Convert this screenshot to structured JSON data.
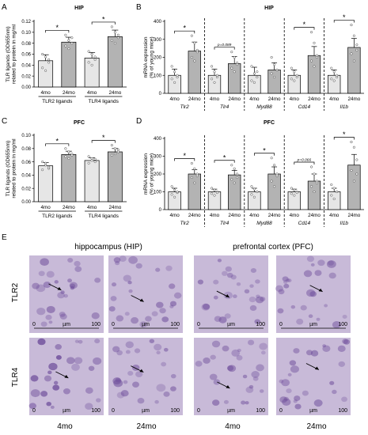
{
  "panel_letters": [
    "A",
    "B",
    "C",
    "D",
    "E"
  ],
  "colors": {
    "bar_4mo": "#e6e6e6",
    "bar_24mo": "#b3b3b3",
    "axis": "#000000",
    "micro_bg": "#c8bad8",
    "micro_stain": "#6d4c9a"
  },
  "chart_data": [
    {
      "panel": "A",
      "type": "bar",
      "title": "HIP",
      "ylabel": "TLR ligands (OD655nm)\nrelated to protein in mg/ml",
      "ylim": [
        0,
        0.12
      ],
      "yticks": [
        "0.00",
        "0.02",
        "0.04",
        "0.06",
        "0.08",
        "0.10",
        "0.12"
      ],
      "categories": [
        "4mo",
        "24mo",
        "4mo",
        "24mo"
      ],
      "groups": [
        "TLR2 ligands",
        "TLR4 ligands"
      ],
      "values": [
        0.048,
        0.082,
        0.053,
        0.092
      ],
      "errors": [
        0.011,
        0.009,
        0.01,
        0.012
      ],
      "points": [
        [
          0.06,
          0.055,
          0.05,
          0.035,
          0.03,
          0.045
        ],
        [
          0.095,
          0.085,
          0.08,
          0.075,
          0.07,
          0.09
        ],
        [
          0.065,
          0.06,
          0.05,
          0.045,
          0.04,
          0.055
        ],
        [
          0.11,
          0.1,
          0.09,
          0.085,
          0.08,
          0.095
        ]
      ],
      "significance": [
        {
          "pair": [
            0,
            1
          ],
          "label": "*"
        },
        {
          "pair": [
            2,
            3
          ],
          "label": "*"
        }
      ]
    },
    {
      "panel": "B",
      "type": "bar",
      "title": "HIP",
      "ylabel": "mRNA expression\n(% of young mice)",
      "ylim": [
        0,
        400
      ],
      "yticks": [
        "0",
        "100",
        "200",
        "300",
        "400"
      ],
      "categories": [
        "4mo",
        "24mo",
        "4mo",
        "24mo",
        "4mo",
        "24mo",
        "4mo",
        "24mo",
        "4mo",
        "24mo"
      ],
      "groups": [
        "Tlr2",
        "Tlr4",
        "Myd88",
        "Cd14",
        "Il1b"
      ],
      "values": [
        100,
        235,
        100,
        165,
        100,
        130,
        100,
        210,
        100,
        255
      ],
      "errors": [
        35,
        50,
        35,
        40,
        45,
        40,
        30,
        50,
        30,
        50
      ],
      "points": [
        [
          150,
          120,
          100,
          80,
          60,
          90
        ],
        [
          320,
          280,
          240,
          200,
          180,
          230
        ],
        [
          150,
          120,
          90,
          80,
          60,
          100
        ],
        [
          230,
          200,
          170,
          140,
          120,
          160
        ],
        [
          150,
          110,
          90,
          70,
          60,
          120
        ],
        [
          200,
          160,
          130,
          110,
          90,
          130
        ],
        [
          140,
          120,
          100,
          80,
          70,
          90
        ],
        [
          340,
          280,
          210,
          180,
          150,
          200
        ],
        [
          140,
          120,
          100,
          80,
          70,
          90
        ],
        [
          380,
          320,
          270,
          220,
          180,
          240
        ]
      ],
      "significance": [
        {
          "pair": [
            0,
            1
          ],
          "label": "*"
        },
        {
          "pair": [
            2,
            3
          ],
          "label": "p=0.089"
        },
        {
          "pair": [
            6,
            7
          ],
          "label": "*"
        },
        {
          "pair": [
            8,
            9
          ],
          "label": "*"
        }
      ]
    },
    {
      "panel": "C",
      "type": "bar",
      "title": "PFC",
      "ylabel": "TLR ligands (OD655nm)\nrelated to protein in mg/ml",
      "ylim": [
        0,
        0.1
      ],
      "yticks": [
        "0.00",
        "0.02",
        "0.04",
        "0.06",
        "0.08",
        "0.10"
      ],
      "categories": [
        "4mo",
        "24mo",
        "4mo",
        "24mo"
      ],
      "groups": [
        "TLR2 ligands",
        "TLR4 ligands"
      ],
      "values": [
        0.054,
        0.071,
        0.062,
        0.075
      ],
      "errors": [
        0.005,
        0.005,
        0.004,
        0.005
      ],
      "points": [
        [
          0.06,
          0.055,
          0.05,
          0.048,
          0.058,
          0.052
        ],
        [
          0.08,
          0.075,
          0.07,
          0.068,
          0.065,
          0.072
        ],
        [
          0.068,
          0.065,
          0.06,
          0.058,
          0.062,
          0.064
        ],
        [
          0.085,
          0.08,
          0.075,
          0.07,
          0.072,
          0.078
        ]
      ],
      "significance": [
        {
          "pair": [
            0,
            1
          ],
          "label": "*"
        },
        {
          "pair": [
            2,
            3
          ],
          "label": "*"
        }
      ]
    },
    {
      "panel": "D",
      "type": "bar",
      "title": "PFC",
      "ylabel": "mRNA expression\n(% of young mice)",
      "ylim": [
        0,
        400
      ],
      "yticks": [
        "0",
        "100",
        "200",
        "300",
        "400"
      ],
      "categories": [
        "4mo",
        "24mo",
        "4mo",
        "24mo",
        "4mo",
        "24mo",
        "4mo",
        "24mo",
        "4mo",
        "24mo"
      ],
      "groups": [
        "Tlr2",
        "Tlr4",
        "Myd88",
        "Cd14",
        "Il1b"
      ],
      "values": [
        100,
        200,
        100,
        195,
        100,
        200,
        100,
        160,
        100,
        250
      ],
      "errors": [
        20,
        25,
        15,
        25,
        20,
        40,
        15,
        40,
        20,
        60
      ],
      "points": [
        [
          130,
          110,
          95,
          85,
          70,
          100
        ],
        [
          260,
          230,
          200,
          180,
          150,
          190
        ],
        [
          120,
          110,
          100,
          90,
          80,
          95
        ],
        [
          250,
          230,
          200,
          170,
          150,
          180
        ],
        [
          130,
          115,
          100,
          85,
          70,
          100
        ],
        [
          290,
          250,
          200,
          160,
          130,
          190
        ],
        [
          120,
          110,
          100,
          90,
          80,
          95
        ],
        [
          240,
          200,
          160,
          130,
          100,
          150
        ],
        [
          140,
          120,
          100,
          80,
          60,
          100
        ],
        [
          380,
          350,
          280,
          220,
          160,
          200
        ]
      ],
      "significance": [
        {
          "pair": [
            0,
            1
          ],
          "label": "*"
        },
        {
          "pair": [
            2,
            3
          ],
          "label": "*"
        },
        {
          "pair": [
            4,
            5
          ],
          "label": "*"
        },
        {
          "pair": [
            6,
            7
          ],
          "label": "p=0.066"
        },
        {
          "pair": [
            8,
            9
          ],
          "label": "*"
        }
      ]
    }
  ],
  "micro": {
    "col_titles": [
      "hippocampus (HIP)",
      "prefrontal cortex (PFC)"
    ],
    "row_labels": [
      "TLR2",
      "TLR4"
    ],
    "col_labels": [
      "4mo",
      "24mo",
      "4mo",
      "24mo"
    ],
    "scale": {
      "zero": "0",
      "unit": "µm",
      "max": "100"
    }
  }
}
